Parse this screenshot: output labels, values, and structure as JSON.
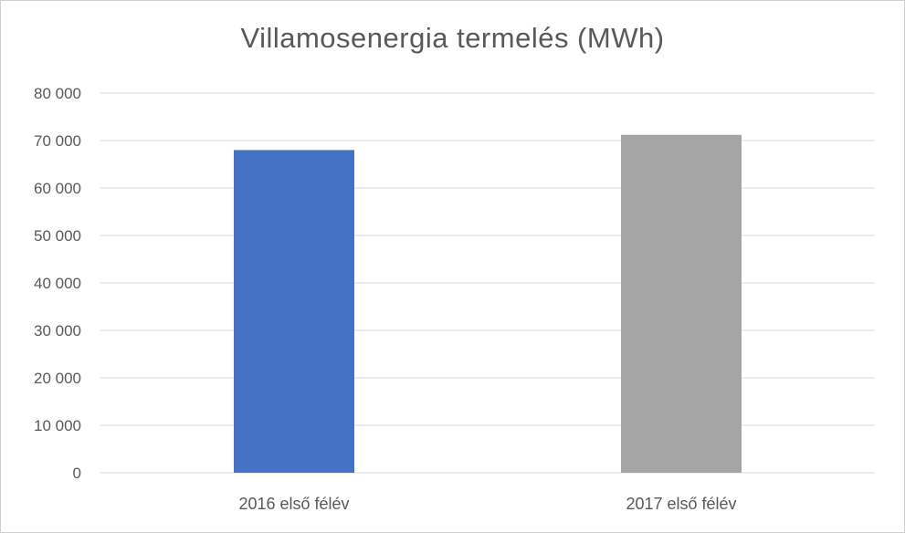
{
  "chart_data": {
    "type": "bar",
    "title": "Villamosenergia termelés (MWh)",
    "xlabel": "",
    "ylabel": "",
    "categories": [
      "2016 első félév",
      "2017 első félév"
    ],
    "values": [
      68000,
      71200
    ],
    "colors": [
      "#4472c4",
      "#a5a5a5"
    ],
    "ylim": [
      0,
      80000
    ],
    "ytick_values": [
      0,
      10000,
      20000,
      30000,
      40000,
      50000,
      60000,
      70000,
      80000
    ],
    "ytick_labels": [
      "0",
      "10 000",
      "20 000",
      "30 000",
      "40 000",
      "50 000",
      "60 000",
      "70 000",
      "80 000"
    ],
    "grid": true,
    "gridline_color": "#d9d9d9",
    "legend": "none"
  }
}
